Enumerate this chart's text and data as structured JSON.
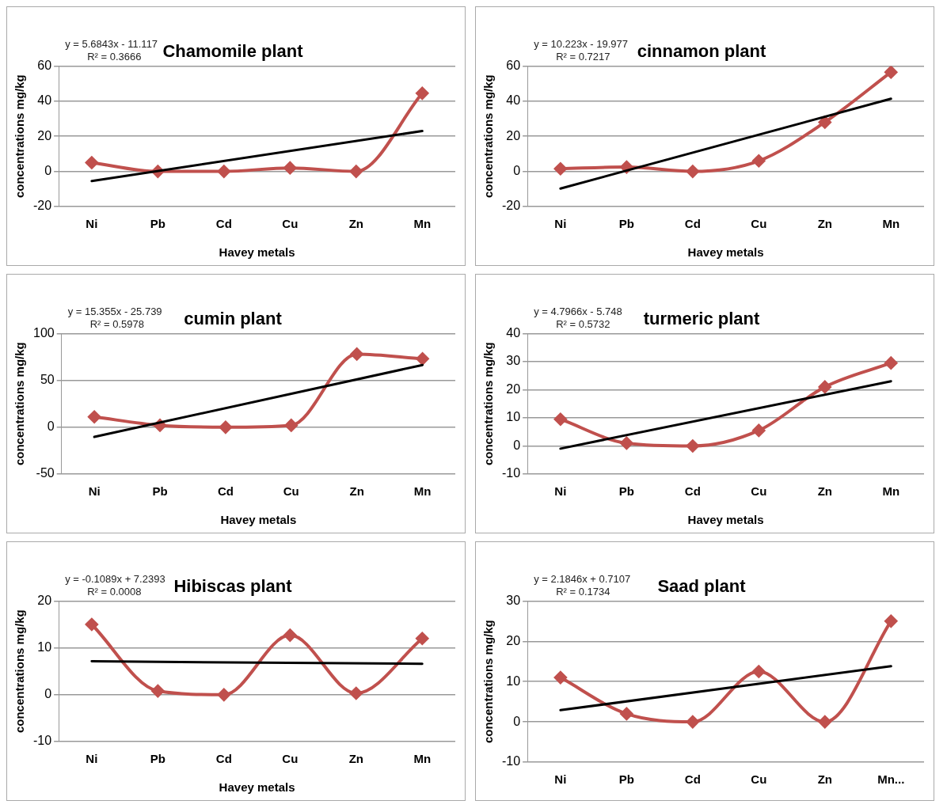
{
  "chart_data": [
    {
      "type": "line",
      "title": "Chamomile plant",
      "xlabel": "Havey metals",
      "ylabel": "concentrations mg/kg",
      "categories": [
        "Ni",
        "Pb",
        "Cd",
        "Cu",
        "Zn",
        "Mn"
      ],
      "ylim": [
        -20,
        60
      ],
      "yticks": [
        -20,
        0,
        20,
        40,
        60
      ],
      "grid": "y",
      "legend": false,
      "annotations": [
        "y = 5.6843x - 11.117",
        "R² = 0.3666"
      ],
      "series": [
        {
          "color": "#c0504d",
          "marker": "diamond",
          "line_style": "solid",
          "values": [
            5,
            0,
            0,
            2,
            0,
            44.5
          ]
        },
        {
          "type": "line",
          "color": "#000000",
          "marker": "none",
          "line_style": "solid",
          "x": [
            "Ni",
            "Mn"
          ],
          "values": [
            -5.43,
            22.99
          ]
        }
      ]
    },
    {
      "type": "line",
      "title": "cinnamon plant",
      "xlabel": "Havey metals",
      "ylabel": "concentrations mg/kg",
      "categories": [
        "Ni",
        "Pb",
        "Cd",
        "Cu",
        "Zn",
        "Mn"
      ],
      "ylim": [
        -20,
        60
      ],
      "yticks": [
        -20,
        0,
        20,
        40,
        60
      ],
      "grid": "y",
      "legend": false,
      "annotations": [
        "y = 10.223x - 19.977",
        "R² = 0.7217"
      ],
      "series": [
        {
          "color": "#c0504d",
          "marker": "diamond",
          "line_style": "solid",
          "values": [
            1.5,
            2.5,
            0,
            6,
            28,
            56.5
          ]
        },
        {
          "type": "line",
          "color": "#000000",
          "marker": "none",
          "line_style": "solid",
          "x": [
            "Ni",
            "Mn"
          ],
          "values": [
            -9.75,
            41.36
          ]
        }
      ]
    },
    {
      "type": "line",
      "title": "cumin plant",
      "xlabel": "Havey metals",
      "ylabel": "concentrations mg/kg",
      "categories": [
        "Ni",
        "Pb",
        "Cd",
        "Cu",
        "Zn",
        "Mn"
      ],
      "ylim": [
        -50,
        100
      ],
      "yticks": [
        -50,
        0,
        50,
        100
      ],
      "grid": "y",
      "legend": false,
      "annotations": [
        "y = 15.355x - 25.739",
        "R² = 0.5978"
      ],
      "series": [
        {
          "color": "#c0504d",
          "marker": "diamond",
          "line_style": "solid",
          "values": [
            11,
            2,
            0,
            2,
            78,
            73
          ]
        },
        {
          "type": "line",
          "color": "#000000",
          "marker": "none",
          "line_style": "solid",
          "x": [
            "Ni",
            "Mn"
          ],
          "values": [
            -10.38,
            66.39
          ]
        }
      ]
    },
    {
      "type": "line",
      "title": "turmeric plant",
      "xlabel": "Havey metals",
      "ylabel": "concentrations mg/kg",
      "categories": [
        "Ni",
        "Pb",
        "Cd",
        "Cu",
        "Zn",
        "Mn"
      ],
      "ylim": [
        -10,
        40
      ],
      "yticks": [
        -10,
        0,
        10,
        20,
        30,
        40
      ],
      "grid": "y",
      "legend": false,
      "annotations": [
        "y = 4.7966x - 5.748",
        "R² = 0.5732"
      ],
      "series": [
        {
          "color": "#c0504d",
          "marker": "diamond",
          "line_style": "solid",
          "values": [
            9.5,
            1,
            0,
            5.5,
            21,
            29.5
          ]
        },
        {
          "type": "line",
          "color": "#000000",
          "marker": "none",
          "line_style": "solid",
          "x": [
            "Ni",
            "Mn"
          ],
          "values": [
            -0.95,
            23.03
          ]
        }
      ]
    },
    {
      "type": "line",
      "title": "Hibiscas plant",
      "xlabel": "Havey metals",
      "ylabel": "concentrations mg/kg",
      "categories": [
        "Ni",
        "Pb",
        "Cd",
        "Cu",
        "Zn",
        "Mn"
      ],
      "ylim": [
        -10,
        20
      ],
      "yticks": [
        -10,
        0,
        10,
        20
      ],
      "grid": "y",
      "legend": false,
      "annotations": [
        "y = -0.1089x + 7.2393",
        "R² = 0.0008"
      ],
      "series": [
        {
          "color": "#c0504d",
          "marker": "diamond",
          "line_style": "solid",
          "values": [
            15,
            0.8,
            0,
            12.7,
            0.3,
            12
          ]
        },
        {
          "type": "line",
          "color": "#000000",
          "marker": "none",
          "line_style": "solid",
          "x": [
            "Ni",
            "Mn"
          ],
          "values": [
            7.13,
            6.59
          ]
        }
      ]
    },
    {
      "type": "line",
      "title": "Saad plant",
      "ylabel": "concentrations mg/kg",
      "categories": [
        "Ni",
        "Pb",
        "Cd",
        "Cu",
        "Zn",
        "Mn..."
      ],
      "ylim": [
        -10,
        30
      ],
      "yticks": [
        -10,
        0,
        10,
        20,
        30
      ],
      "grid": "y",
      "legend": false,
      "annotations": [
        "y = 2.1846x + 0.7107",
        "R² = 0.1734"
      ],
      "series": [
        {
          "color": "#c0504d",
          "marker": "diamond",
          "line_style": "solid",
          "values": [
            11,
            2,
            0,
            12.5,
            0,
            25
          ]
        },
        {
          "type": "line",
          "color": "#000000",
          "marker": "none",
          "line_style": "solid",
          "x": [
            "Ni",
            "Mn..."
          ],
          "values": [
            2.9,
            13.82
          ]
        }
      ]
    }
  ]
}
